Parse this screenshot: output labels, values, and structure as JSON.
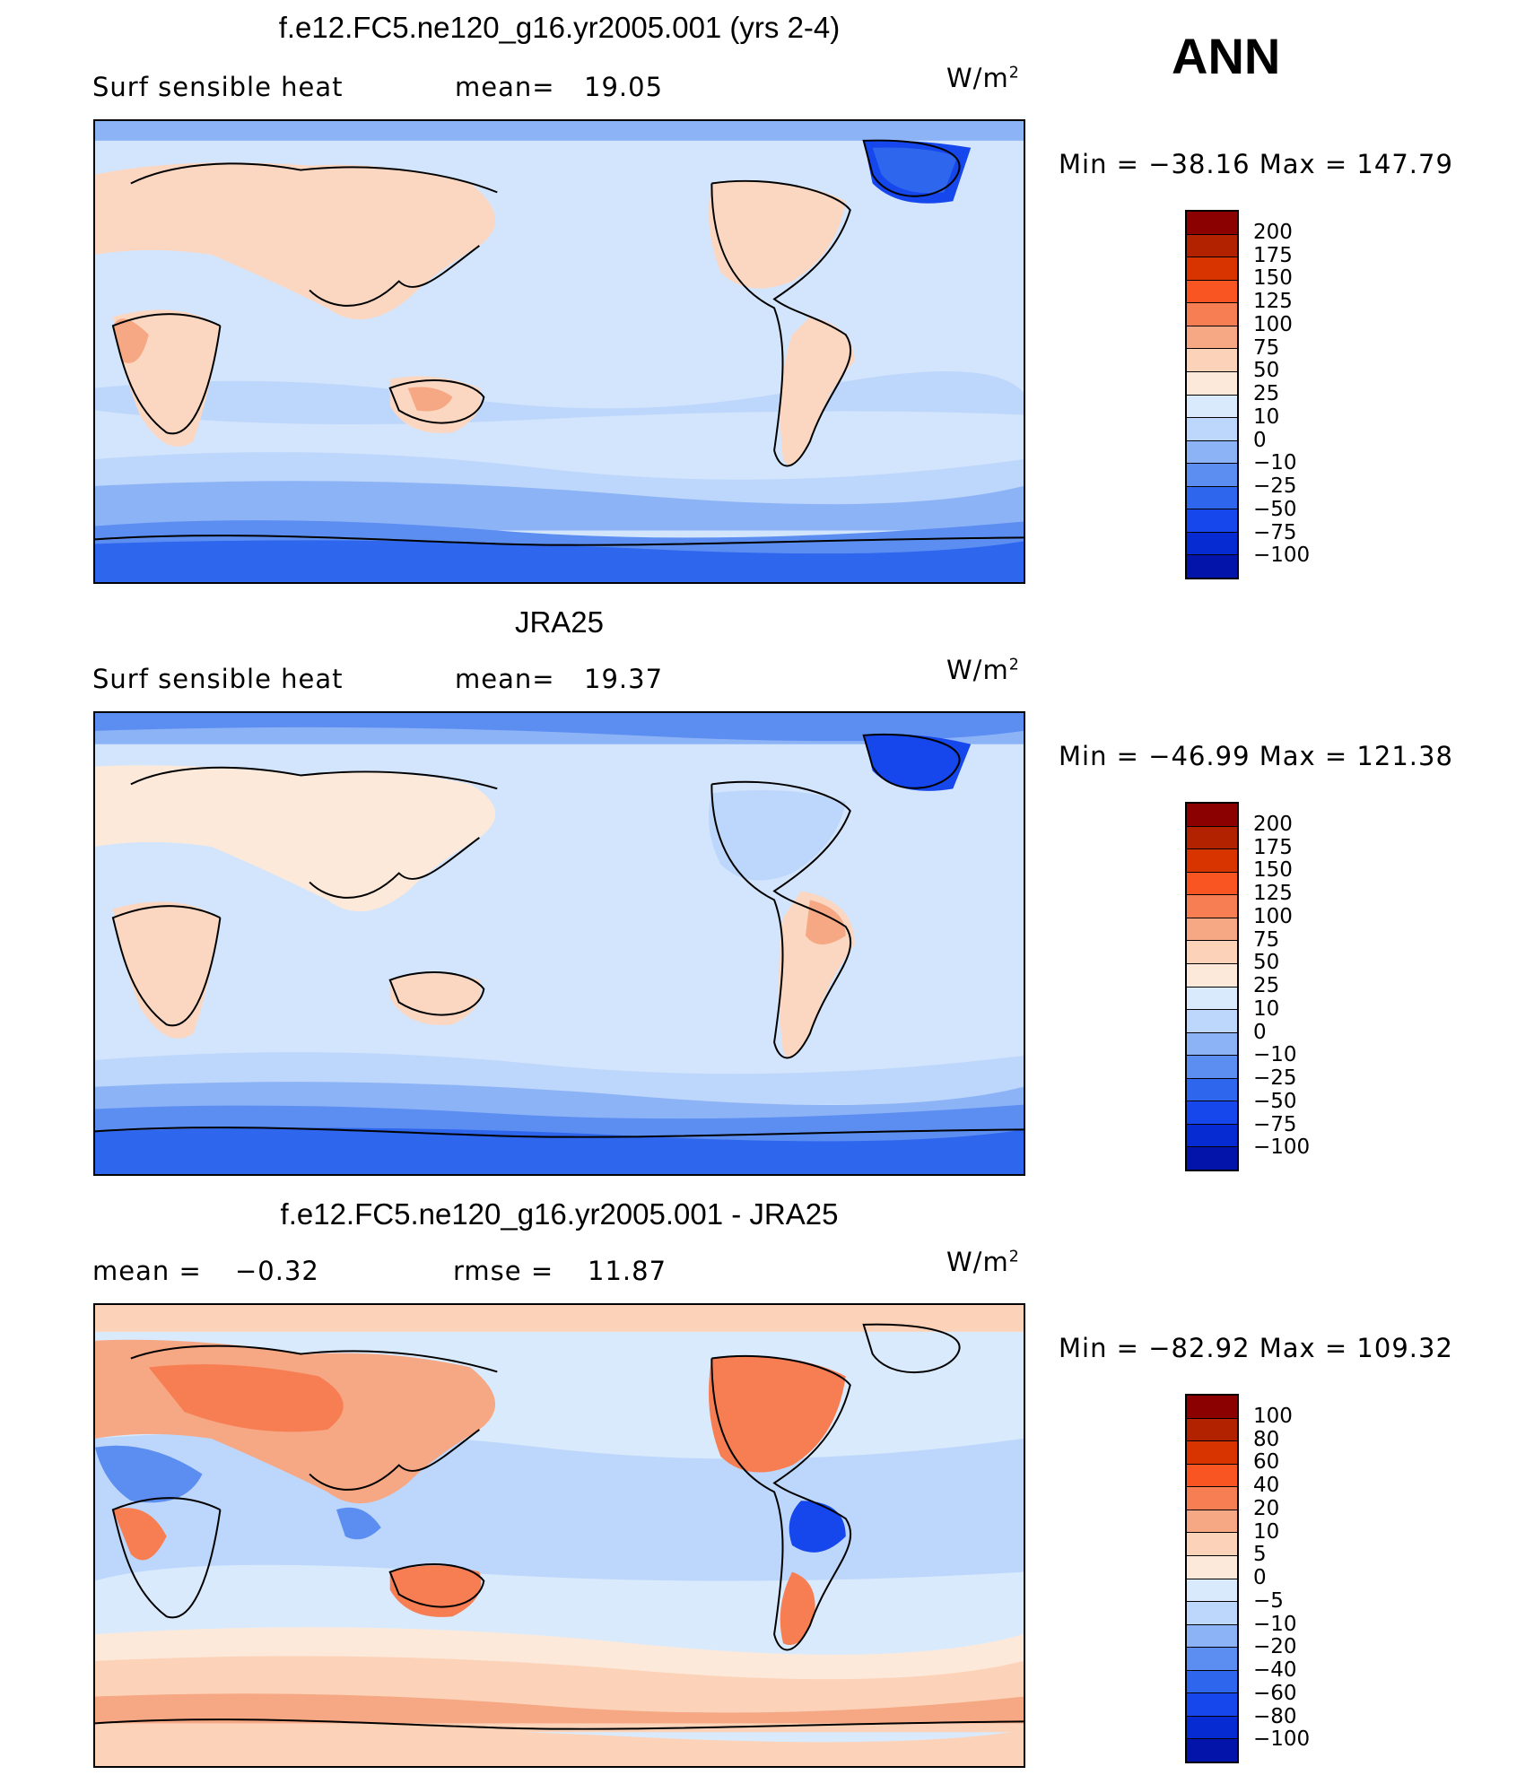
{
  "season": "ANN",
  "colors": {
    "abs_scale": [
      "#8b0000",
      "#b22200",
      "#d83400",
      "#f85522",
      "#f77d52",
      "#f6a783",
      "#fcd3b8",
      "#fde9da",
      "#d9eafd",
      "#bdd6fb",
      "#8db3f7",
      "#5c8ef2",
      "#2f66ee",
      "#1547ec",
      "#062bd2",
      "#0314ab",
      "#000080"
    ],
    "diff_scale": [
      "#8b0000",
      "#b22200",
      "#d83400",
      "#f85522",
      "#f77d52",
      "#f6a783",
      "#fcd3b8",
      "#fde9da",
      "#d9eafd",
      "#bdd6fb",
      "#8db3f7",
      "#5c8ef2",
      "#2f66ee",
      "#1547ec",
      "#062bd2",
      "#0314ab",
      "#000080"
    ],
    "ocean": "#d3e5fc",
    "land_warm": "#fbd7c2",
    "polar_cold": "#4a7cf0"
  },
  "panels": [
    {
      "title": "f.e12.FC5.ne120_g16.yr2005.001 (yrs 2-4)",
      "left_label": "Surf  sensible  heat",
      "stat_label": "mean=",
      "stat_value": "19.05",
      "stat2_label": "",
      "stat2_value": "",
      "units": "W/m",
      "units_sup": "2",
      "minmax": "Min  =  −38.16  Max  =  147.79",
      "ticks": [
        "200",
        "175",
        "150",
        "125",
        "100",
        "75",
        "50",
        "25",
        "10",
        "0",
        "−10",
        "−25",
        "−50",
        "−75",
        "−100"
      ]
    },
    {
      "title": "JRA25",
      "left_label": "Surf  sensible  heat",
      "stat_label": "mean=",
      "stat_value": "19.37",
      "stat2_label": "",
      "stat2_value": "",
      "units": "W/m",
      "units_sup": "2",
      "minmax": "Min  =  −46.99  Max  =  121.38",
      "ticks": [
        "200",
        "175",
        "150",
        "125",
        "100",
        "75",
        "50",
        "25",
        "10",
        "0",
        "−10",
        "−25",
        "−50",
        "−75",
        "−100"
      ]
    },
    {
      "title": "f.e12.FC5.ne120_g16.yr2005.001 - JRA25",
      "left_label": "mean  =",
      "stat_label": "",
      "stat_value": "−0.32",
      "stat2_label": "rmse  =",
      "stat2_value": "11.87",
      "units": "W/m",
      "units_sup": "2",
      "minmax": "Min  =  −82.92  Max  =  109.32",
      "ticks": [
        "100",
        "80",
        "60",
        "40",
        "20",
        "10",
        "5",
        "0",
        "−5",
        "−10",
        "−20",
        "−40",
        "−60",
        "−80",
        "−100"
      ]
    }
  ]
}
